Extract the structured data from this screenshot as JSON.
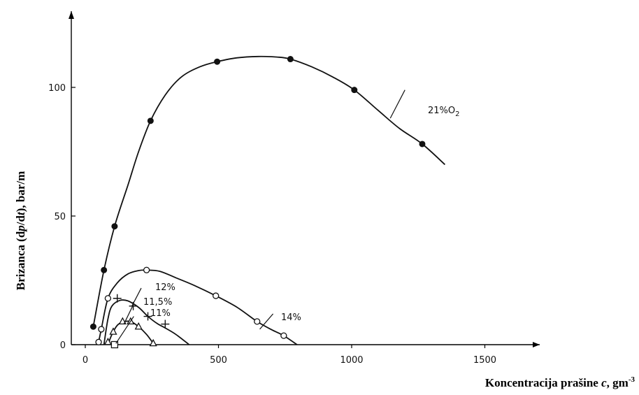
{
  "chart_data": {
    "type": "line",
    "title": "",
    "xlabel_parts": [
      "Koncentracija prašine ",
      "c",
      ", gm",
      "-3"
    ],
    "ylabel_parts": [
      "Brizanca (d",
      "p",
      "/d",
      "t",
      "),  bar/m"
    ],
    "xlim": [
      0,
      1500
    ],
    "ylim": [
      0,
      125
    ],
    "xticks": [
      0,
      500,
      1000,
      1500
    ],
    "yticks": [
      0,
      50,
      100
    ],
    "grid": false,
    "series": [
      {
        "name": "21%O",
        "name_sub": "2",
        "marker": "filled-circle",
        "points": [
          [
            30,
            7
          ],
          [
            70,
            29
          ],
          [
            110,
            46
          ],
          [
            245,
            87
          ],
          [
            495,
            110
          ],
          [
            770,
            111
          ],
          [
            1010,
            99
          ],
          [
            1265,
            78
          ]
        ],
        "curve": [
          [
            30,
            7
          ],
          [
            70,
            29
          ],
          [
            110,
            46
          ],
          [
            160,
            62
          ],
          [
            200,
            75
          ],
          [
            245,
            87
          ],
          [
            300,
            97
          ],
          [
            360,
            104
          ],
          [
            430,
            108
          ],
          [
            495,
            110
          ],
          [
            570,
            111.5
          ],
          [
            650,
            112
          ],
          [
            720,
            111.8
          ],
          [
            770,
            111
          ],
          [
            850,
            108
          ],
          [
            930,
            104
          ],
          [
            1010,
            99
          ],
          [
            1100,
            91
          ],
          [
            1180,
            84
          ],
          [
            1265,
            78
          ],
          [
            1350,
            70
          ]
        ]
      },
      {
        "name": "14%",
        "marker": "open-circle",
        "points": [
          [
            50,
            1
          ],
          [
            60,
            6
          ],
          [
            85,
            18
          ],
          [
            230,
            29
          ],
          [
            490,
            19
          ],
          [
            645,
            9
          ],
          [
            745,
            3.5
          ]
        ],
        "curve": [
          [
            50,
            1
          ],
          [
            60,
            6
          ],
          [
            85,
            18
          ],
          [
            120,
            24
          ],
          [
            160,
            27.5
          ],
          [
            200,
            28.8
          ],
          [
            230,
            29
          ],
          [
            280,
            28.5
          ],
          [
            340,
            26
          ],
          [
            410,
            23
          ],
          [
            490,
            19
          ],
          [
            570,
            14.5
          ],
          [
            645,
            9
          ],
          [
            700,
            5.8
          ],
          [
            745,
            3.5
          ],
          [
            795,
            0
          ]
        ]
      },
      {
        "name": "12%",
        "marker": "plus",
        "points": [
          [
            120,
            18
          ],
          [
            180,
            15
          ],
          [
            235,
            11
          ],
          [
            300,
            8
          ]
        ],
        "curve": [
          [
            70,
            0
          ],
          [
            85,
            10
          ],
          [
            100,
            15
          ],
          [
            130,
            17.2
          ],
          [
            160,
            17
          ],
          [
            200,
            14.5
          ],
          [
            235,
            11
          ],
          [
            270,
            8.2
          ],
          [
            300,
            6.5
          ],
          [
            340,
            4
          ],
          [
            390,
            0
          ]
        ]
      },
      {
        "name": "11,5%",
        "marker": "triangle",
        "points": [
          [
            85,
            1
          ],
          [
            105,
            5
          ],
          [
            140,
            9
          ],
          [
            170,
            9
          ],
          [
            200,
            7
          ],
          [
            255,
            0.5
          ]
        ],
        "curve": [
          [
            85,
            0
          ],
          [
            100,
            4
          ],
          [
            120,
            7.5
          ],
          [
            140,
            8.8
          ],
          [
            170,
            9
          ],
          [
            200,
            7
          ],
          [
            230,
            4
          ],
          [
            255,
            0.5
          ]
        ]
      },
      {
        "name": "11%",
        "marker": "square",
        "points": [
          [
            110,
            0
          ]
        ],
        "curve": []
      }
    ]
  }
}
